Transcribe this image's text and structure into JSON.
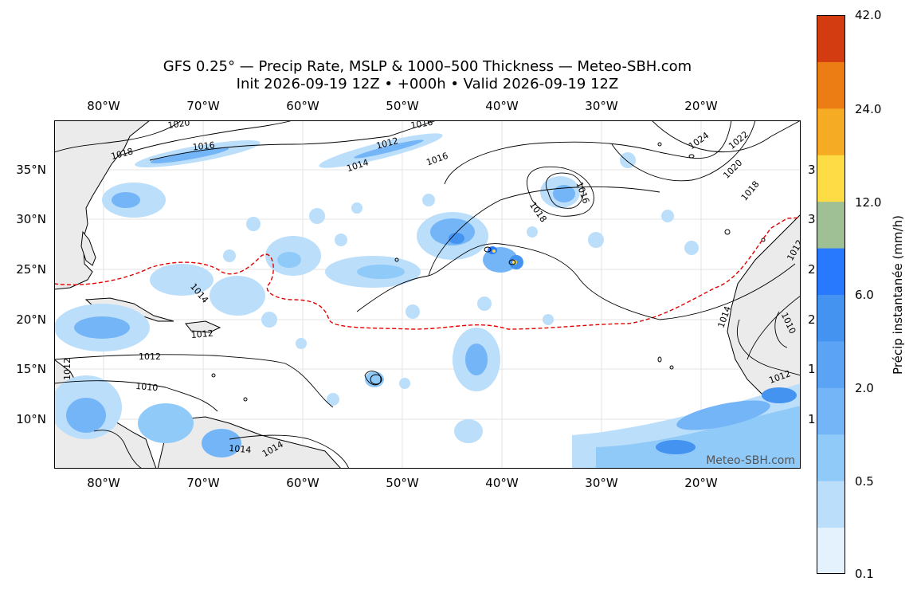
{
  "title_line1": "GFS 0.25° — Precip Rate, MSLP & 1000–500 Thickness — Meteo-SBH.com",
  "title_line2": "Init 2026-09-19 12Z • +000h • Valid 2026-09-19 12Z",
  "lon_labels": [
    "80°W",
    "70°W",
    "60°W",
    "50°W",
    "40°W",
    "30°W",
    "20°W"
  ],
  "lat_labels": [
    "35°N",
    "30°N",
    "25°N",
    "20°N",
    "15°N",
    "10°N"
  ],
  "right_edge_labels": [
    "3",
    "3",
    "2",
    "2",
    "1",
    "1"
  ],
  "watermark": "Meteo-SBH.com",
  "isobar_labels": [
    "1020",
    "1018",
    "1016",
    "1016",
    "1014",
    "1012",
    "1016",
    "1024",
    "1022",
    "1020",
    "1018",
    "1016",
    "1018",
    "1014",
    "1012",
    "1012",
    "1010",
    "1014",
    "1014",
    "1012",
    "1014",
    "1010",
    "1012",
    "1012"
  ],
  "colorbar": {
    "label": "Précip instantanée (mm/h)",
    "tick_labels": [
      "42.0",
      "24.0",
      "12.0",
      "6.0",
      "2.0",
      "0.5",
      "0.1"
    ],
    "colors": [
      "#e3f2fd",
      "#bbdefb",
      "#90caf9",
      "#74b5f7",
      "#5ba4f5",
      "#4493f1",
      "#2979ff",
      "#9fbf94",
      "#fddc45",
      "#f5ab24",
      "#ec7d14",
      "#d33c10"
    ]
  },
  "colors": {
    "land": "#ebebeb",
    "ocean": "#ffffff",
    "thickness_line": "#e00000",
    "isobar": "#000000",
    "grid": "#dddddd"
  }
}
